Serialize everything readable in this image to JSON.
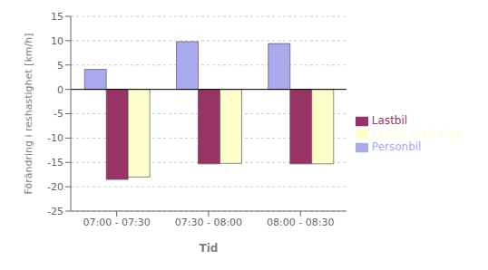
{
  "chart_data": {
    "type": "bar",
    "categories": [
      "07:00 - 07:30",
      "07:30 - 08:00",
      "08:00 - 08:30"
    ],
    "series": [
      {
        "name": "Personbil",
        "color": "#aaaaee",
        "values": [
          4.1,
          9.8,
          9.4
        ]
      },
      {
        "name": "Lastbil",
        "color": "#993366",
        "values": [
          -18.5,
          -15.3,
          -15.3
        ]
      },
      {
        "name": "Lastbil med släp",
        "color": "#ffffcc",
        "values": [
          -18.0,
          -15.2,
          -15.3
        ]
      }
    ],
    "xlabel": "Tid",
    "ylabel": "Förändring i reshastighet [km/h]",
    "ylim": [
      -25,
      15
    ],
    "yticks": [
      -25,
      -20,
      -15,
      -10,
      -5,
      0,
      5,
      10,
      15
    ],
    "grid": true,
    "legend": "right"
  }
}
